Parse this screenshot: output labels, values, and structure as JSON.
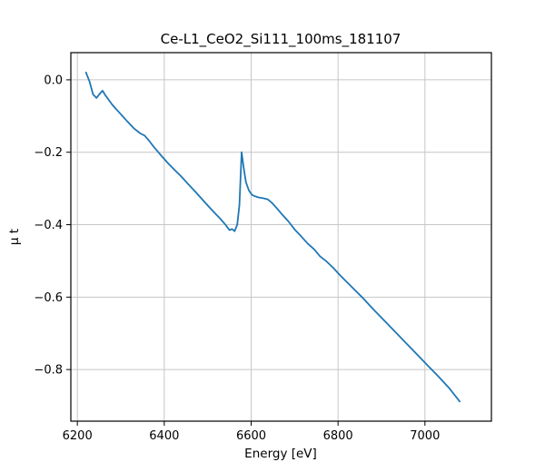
{
  "figure": {
    "background": "#ffffff"
  },
  "chart_data": {
    "type": "line",
    "title": "Ce-L1_CeO2_Si111_100ms_181107",
    "xlabel": "Energy [eV]",
    "ylabel": "μ t",
    "xlim": [
      6185,
      7153
    ],
    "ylim": [
      -0.9425,
      0.075
    ],
    "xticks": [
      6200,
      6400,
      6600,
      6800,
      7000
    ],
    "xtick_labels": [
      "6200",
      "6400",
      "6600",
      "6800",
      "7000"
    ],
    "yticks": [
      0.0,
      -0.2,
      -0.4,
      -0.6,
      -0.8
    ],
    "ytick_labels": [
      "0.0",
      "−0.2",
      "−0.4",
      "−0.6",
      "−0.8"
    ],
    "grid": true,
    "legend": "none",
    "line_color": "#1f77b4",
    "grid_color": "#c6c6c6",
    "axis_color": "#000000",
    "series": [
      {
        "name": "mu_t",
        "x": [
          6220,
          6228,
          6236,
          6244,
          6252,
          6258,
          6264,
          6272,
          6280,
          6290,
          6300,
          6315,
          6330,
          6345,
          6355,
          6365,
          6375,
          6385,
          6395,
          6410,
          6425,
          6440,
          6455,
          6470,
          6485,
          6500,
          6515,
          6530,
          6542,
          6550,
          6556,
          6562,
          6568,
          6573,
          6578,
          6583,
          6588,
          6595,
          6602,
          6610,
          6618,
          6628,
          6638,
          6648,
          6658,
          6670,
          6685,
          6700,
          6715,
          6730,
          6745,
          6758,
          6772,
          6788,
          6805,
          6830,
          6855,
          6880,
          6905,
          6930,
          6955,
          6980,
          7005,
          7030,
          7055,
          7080
        ],
        "y": [
          0.02,
          -0.005,
          -0.04,
          -0.05,
          -0.038,
          -0.03,
          -0.042,
          -0.055,
          -0.068,
          -0.082,
          -0.095,
          -0.115,
          -0.134,
          -0.148,
          -0.154,
          -0.168,
          -0.184,
          -0.198,
          -0.212,
          -0.232,
          -0.25,
          -0.268,
          -0.288,
          -0.307,
          -0.327,
          -0.347,
          -0.366,
          -0.385,
          -0.402,
          -0.415,
          -0.412,
          -0.418,
          -0.4,
          -0.345,
          -0.2,
          -0.245,
          -0.283,
          -0.306,
          -0.318,
          -0.322,
          -0.325,
          -0.327,
          -0.33,
          -0.34,
          -0.353,
          -0.37,
          -0.39,
          -0.413,
          -0.432,
          -0.452,
          -0.468,
          -0.487,
          -0.5,
          -0.518,
          -0.54,
          -0.57,
          -0.6,
          -0.632,
          -0.663,
          -0.694,
          -0.725,
          -0.756,
          -0.787,
          -0.818,
          -0.85,
          -0.888
        ]
      }
    ]
  }
}
